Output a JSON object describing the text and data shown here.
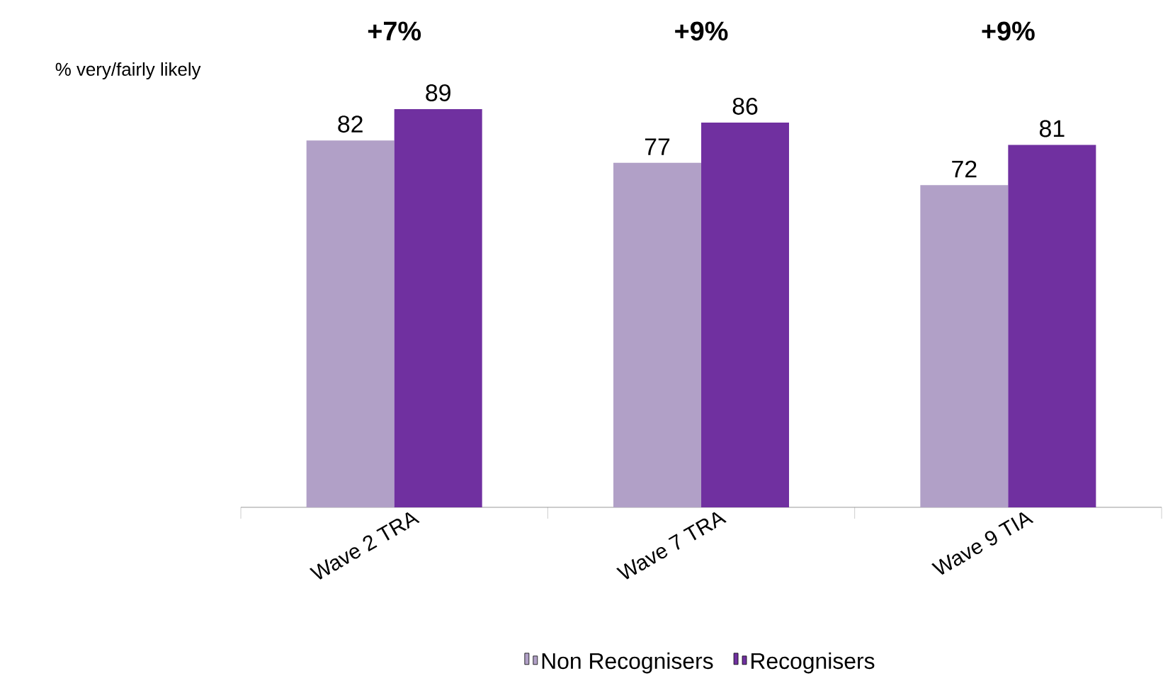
{
  "chart_data": {
    "type": "bar",
    "ylabel": "% very/fairly likely",
    "categories": [
      "Wave 2 TRA",
      "Wave 7 TRA",
      "Wave 9 TIA"
    ],
    "series": [
      {
        "name": "Non Recognisers",
        "color": "#b1a0c7",
        "values": [
          82,
          77,
          72
        ]
      },
      {
        "name": "Recognisers",
        "color": "#7030a0",
        "values": [
          89,
          86,
          81
        ]
      }
    ],
    "data_labels": true,
    "legend": "bottom",
    "tick_labels": "x",
    "annotations": [
      "+7%",
      "+9%",
      "+9%"
    ]
  }
}
